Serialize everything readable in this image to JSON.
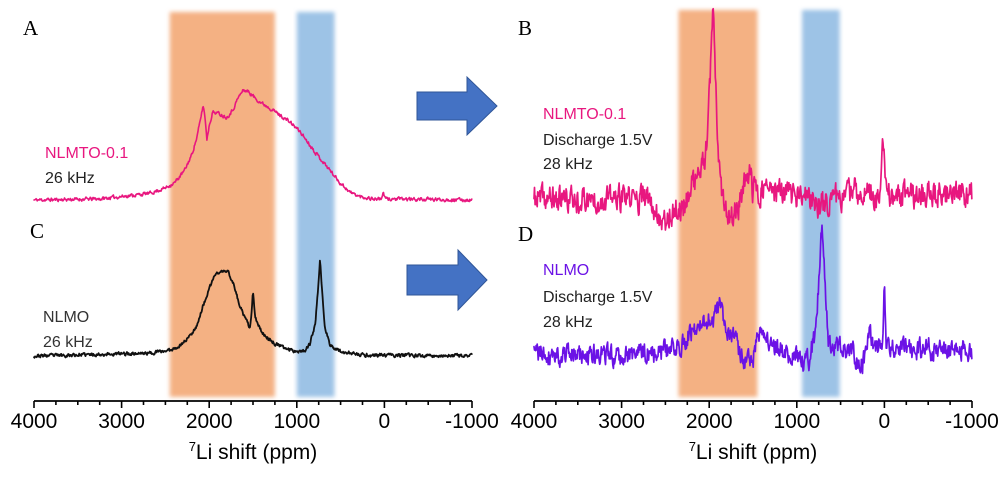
{
  "figure": {
    "arrows": [
      {
        "from_panel": "A",
        "to_panel": "B",
        "color": "#4472C4",
        "outline": "#2F5597"
      },
      {
        "from_panel": "C",
        "to_panel": "D",
        "color": "#4472C4",
        "outline": "#2F5597"
      }
    ]
  },
  "chart_data": [
    {
      "type": "line",
      "title": "",
      "xlabel": {
        "superscript": "7",
        "text": "Li shift (ppm)"
      },
      "ylabel": "",
      "xlim": [
        4000,
        -1000
      ],
      "x_reversed": true,
      "x_ticks": [
        4000,
        3000,
        2000,
        1000,
        0,
        -1000
      ],
      "x_tick_labels": [
        "4000",
        "3000",
        "2000",
        "1000",
        "0",
        "-1000"
      ],
      "x_minor_tick_step": 250,
      "y_axis_visible": false,
      "grid": false,
      "legend": "none",
      "bands": [
        {
          "label": "orange-highlight",
          "from": 2450,
          "to": 1250,
          "color": "#F4B183"
        },
        {
          "label": "blue-highlight",
          "from": 1000,
          "to": 570,
          "color": "#9DC3E6"
        }
      ],
      "series": [
        {
          "panel": "A",
          "name": "NLMTO-0.1",
          "condition": "26 kHz",
          "color": "#E8177F",
          "noise_level": 0.009,
          "labels": [
            {
              "text": "NLMTO-0.1",
              "color": "#E8177F"
            },
            {
              "text": "26 kHz",
              "color": "#222222"
            }
          ],
          "points": [
            [
              4000,
              0
            ],
            [
              3250,
              0.01
            ],
            [
              2680,
              0.06
            ],
            [
              2500,
              0.11
            ],
            [
              2390,
              0.16
            ],
            [
              2280,
              0.27
            ],
            [
              2200,
              0.41
            ],
            [
              2140,
              0.57
            ],
            [
              2100,
              0.73
            ],
            [
              2070,
              0.86
            ],
            [
              2050,
              0.77
            ],
            [
              2025,
              0.55
            ],
            [
              2000,
              0.68
            ],
            [
              1960,
              0.8
            ],
            [
              1900,
              0.79
            ],
            [
              1850,
              0.77
            ],
            [
              1800,
              0.75
            ],
            [
              1730,
              0.82
            ],
            [
              1670,
              0.93
            ],
            [
              1610,
              1.0
            ],
            [
              1560,
              0.99
            ],
            [
              1480,
              0.93
            ],
            [
              1400,
              0.88
            ],
            [
              1310,
              0.84
            ],
            [
              1190,
              0.77
            ],
            [
              1080,
              0.71
            ],
            [
              960,
              0.62
            ],
            [
              850,
              0.5
            ],
            [
              735,
              0.38
            ],
            [
              620,
              0.27
            ],
            [
              510,
              0.16
            ],
            [
              390,
              0.07
            ],
            [
              280,
              0.03
            ],
            [
              110,
              0.01
            ],
            [
              40,
              0.01
            ],
            [
              15,
              0.06
            ],
            [
              -15,
              0.01
            ],
            [
              -1000,
              0
            ]
          ]
        },
        {
          "panel": "C",
          "name": "NLMO",
          "condition": "26 kHz",
          "color": "#111111",
          "noise_level": 0.01,
          "labels": [
            {
              "text": "NLMO",
              "color": "#333333"
            },
            {
              "text": "26 kHz",
              "color": "#333333"
            }
          ],
          "points": [
            [
              4000,
              0
            ],
            [
              2680,
              0.03
            ],
            [
              2450,
              0.06
            ],
            [
              2330,
              0.11
            ],
            [
              2220,
              0.21
            ],
            [
              2140,
              0.32
            ],
            [
              2070,
              0.52
            ],
            [
              1990,
              0.72
            ],
            [
              1935,
              0.85
            ],
            [
              1855,
              0.88
            ],
            [
              1785,
              0.88
            ],
            [
              1730,
              0.77
            ],
            [
              1650,
              0.52
            ],
            [
              1590,
              0.39
            ],
            [
              1535,
              0.29
            ],
            [
              1512,
              0.49
            ],
            [
              1500,
              0.67
            ],
            [
              1478,
              0.42
            ],
            [
              1445,
              0.32
            ],
            [
              1365,
              0.21
            ],
            [
              1250,
              0.13
            ],
            [
              1135,
              0.08
            ],
            [
              1000,
              0.05
            ],
            [
              905,
              0.06
            ],
            [
              850,
              0.13
            ],
            [
              790,
              0.32
            ],
            [
              758,
              0.69
            ],
            [
              735,
              1.0
            ],
            [
              712,
              0.69
            ],
            [
              678,
              0.29
            ],
            [
              620,
              0.11
            ],
            [
              505,
              0.05
            ],
            [
              280,
              0.01
            ],
            [
              -1000,
              0
            ]
          ]
        }
      ]
    },
    {
      "type": "line",
      "title": "",
      "xlabel": {
        "superscript": "7",
        "text": "Li shift (ppm)"
      },
      "ylabel": "",
      "xlim": [
        4000,
        -1000
      ],
      "x_reversed": true,
      "x_ticks": [
        4000,
        3000,
        2000,
        1000,
        0,
        -1000
      ],
      "x_tick_labels": [
        "4000",
        "3000",
        "2000",
        "1000",
        "0",
        "-1000"
      ],
      "x_minor_tick_step": 250,
      "y_axis_visible": false,
      "grid": false,
      "legend": "none",
      "bands": [
        {
          "label": "orange-highlight",
          "from": 2350,
          "to": 1450,
          "color": "#F4B183"
        },
        {
          "label": "blue-highlight",
          "from": 940,
          "to": 510,
          "color": "#9DC3E6"
        }
      ],
      "series": [
        {
          "panel": "B",
          "name": "NLMTO-0.1",
          "condition": "Discharge 1.5V, 28 kHz",
          "color": "#E8177F",
          "noise_level": 0.04,
          "labels": [
            {
              "text": "NLMTO-0.1",
              "color": "#E8177F"
            },
            {
              "text": "Discharge 1.5V",
              "color": "#222222"
            },
            {
              "text": "28 kHz",
              "color": "#222222"
            }
          ],
          "points": [
            [
              4000,
              0
            ],
            [
              2700,
              0
            ],
            [
              2520,
              -0.12
            ],
            [
              2450,
              -0.08
            ],
            [
              2300,
              -0.05
            ],
            [
              2180,
              0.1
            ],
            [
              2110,
              0.14
            ],
            [
              2050,
              0.2
            ],
            [
              2015,
              0.37
            ],
            [
              1980,
              0.74
            ],
            [
              1957,
              1.0
            ],
            [
              1935,
              0.8
            ],
            [
              1912,
              0.37
            ],
            [
              1878,
              0.1
            ],
            [
              1820,
              -0.08
            ],
            [
              1730,
              -0.1
            ],
            [
              1650,
              -0.02
            ],
            [
              1590,
              0.08
            ],
            [
              1534,
              0.19
            ],
            [
              1510,
              0.04
            ],
            [
              1420,
              0.05
            ],
            [
              1000,
              0.02
            ],
            [
              900,
              0.0
            ],
            [
              700,
              -0.03
            ],
            [
              600,
              0.0
            ],
            [
              300,
              0.04
            ],
            [
              60,
              0.02
            ],
            [
              16,
              0.3
            ],
            [
              -20,
              0.02
            ],
            [
              -1000,
              0.03
            ]
          ]
        },
        {
          "panel": "D",
          "name": "NLMO",
          "condition": "Discharge 1.5V, 28 kHz",
          "color": "#6B12E6",
          "noise_level": 0.045,
          "labels": [
            {
              "text": "NLMO",
              "color": "#6B12E6"
            },
            {
              "text": "Discharge 1.5V",
              "color": "#222222"
            },
            {
              "text": "28 kHz",
              "color": "#222222"
            }
          ],
          "points": [
            [
              4000,
              0
            ],
            [
              3300,
              -0.02
            ],
            [
              2600,
              0.0
            ],
            [
              2400,
              0.04
            ],
            [
              2250,
              0.12
            ],
            [
              2100,
              0.2
            ],
            [
              1950,
              0.28
            ],
            [
              1880,
              0.35
            ],
            [
              1820,
              0.22
            ],
            [
              1720,
              0.1
            ],
            [
              1600,
              -0.06
            ],
            [
              1500,
              -0.05
            ],
            [
              1450,
              0.12
            ],
            [
              1400,
              0.12
            ],
            [
              1200,
              0.03
            ],
            [
              1000,
              -0.03
            ],
            [
              920,
              -0.09
            ],
            [
              860,
              -0.04
            ],
            [
              800,
              0.1
            ],
            [
              760,
              0.43
            ],
            [
              735,
              0.69
            ],
            [
              712,
              1.0
            ],
            [
              690,
              0.69
            ],
            [
              670,
              0.4
            ],
            [
              640,
              0.1
            ],
            [
              600,
              0.08
            ],
            [
              400,
              0.02
            ],
            [
              260,
              -0.1
            ],
            [
              200,
              0.0
            ],
            [
              164,
              0.25
            ],
            [
              130,
              0.02
            ],
            [
              20,
              0.08
            ],
            [
              0,
              0.53
            ],
            [
              -20,
              0.05
            ],
            [
              -300,
              0.02
            ],
            [
              -1000,
              0.02
            ]
          ]
        }
      ]
    }
  ]
}
